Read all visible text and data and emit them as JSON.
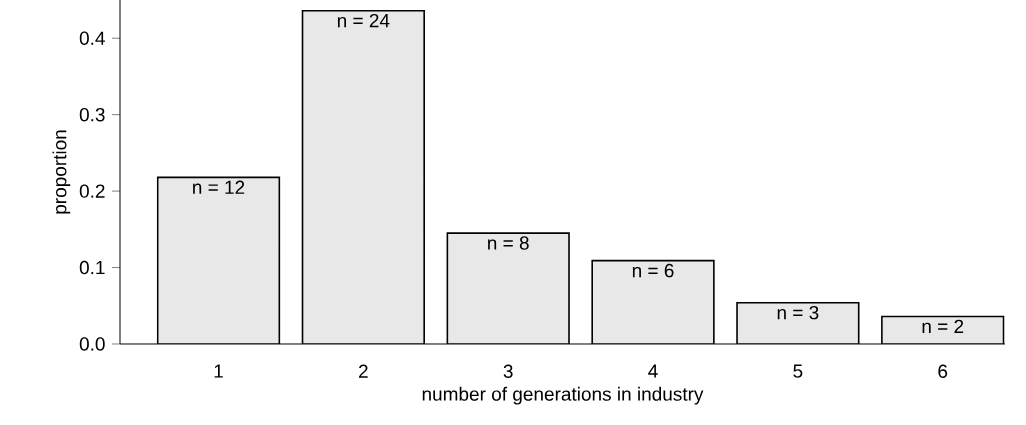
{
  "chart_data": {
    "type": "bar",
    "xlabel": "number of generations in industry",
    "ylabel": "proportion",
    "categories": [
      "1",
      "2",
      "3",
      "4",
      "5",
      "6"
    ],
    "values": [
      0.218,
      0.436,
      0.145,
      0.109,
      0.054,
      0.036
    ],
    "annotations": [
      {
        "text": "n = 12",
        "x": "1",
        "y": 0.218
      },
      {
        "text": "n = 24",
        "x": "2",
        "y": 0.436
      },
      {
        "text": "n = 8",
        "x": "3",
        "y": 0.145
      },
      {
        "text": "n = 6",
        "x": "4",
        "y": 0.109
      },
      {
        "text": "n = 3",
        "x": "5",
        "y": 0.054
      },
      {
        "text": "n = 2",
        "x": "6",
        "y": 0.036
      }
    ],
    "color": "#e8e8e8",
    "ylim": [
      0,
      0.45
    ],
    "yticks": [
      {
        "value": 0,
        "label": "0.0"
      },
      {
        "value": 0.1,
        "label": "0.1"
      },
      {
        "value": 0.2,
        "label": "0.2"
      },
      {
        "value": 0.3,
        "label": "0.3"
      },
      {
        "value": 0.4,
        "label": "0.4"
      }
    ],
    "grid": false
  }
}
